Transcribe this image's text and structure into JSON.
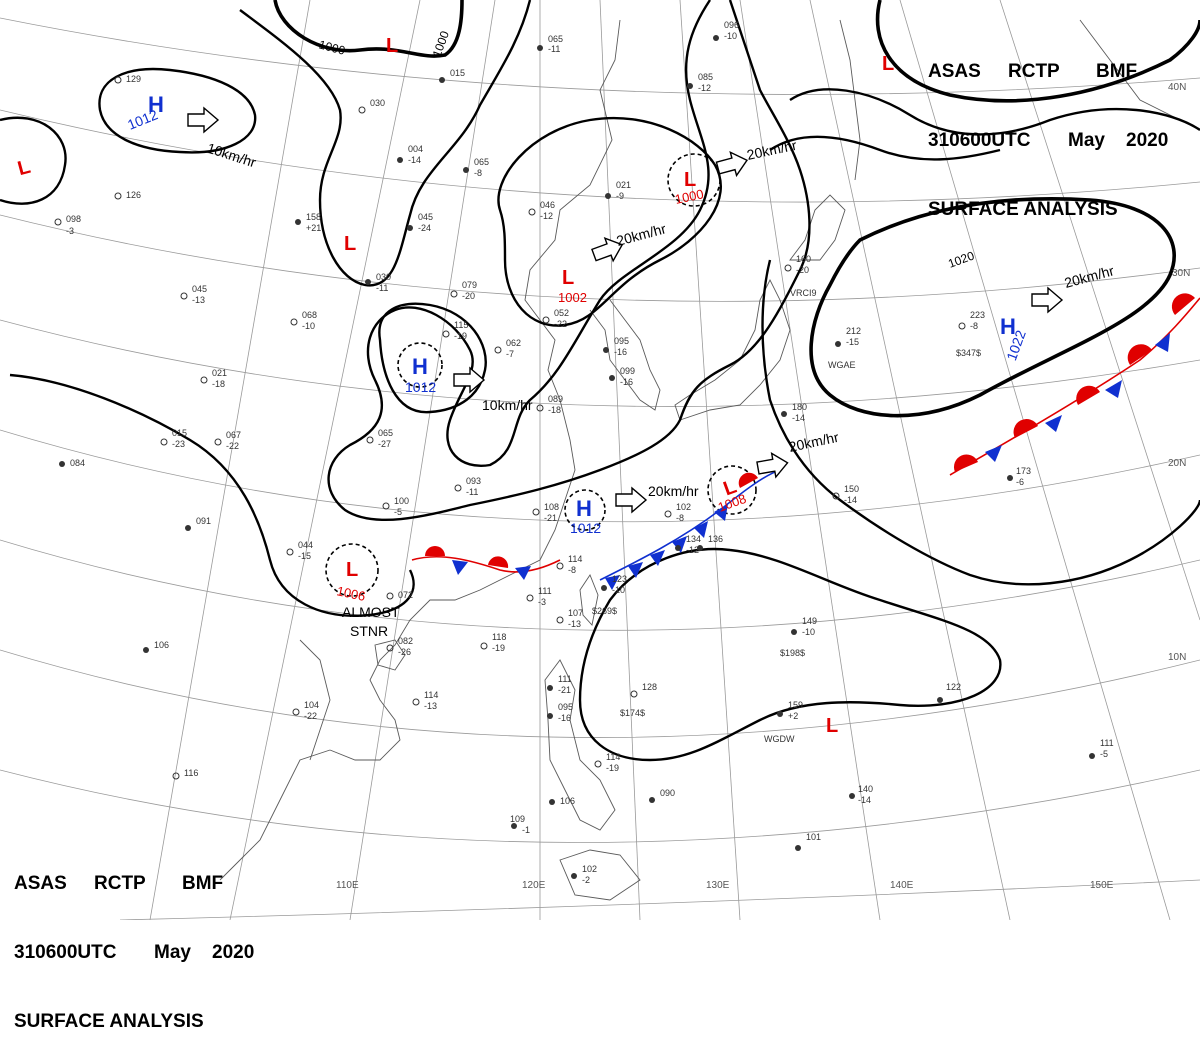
{
  "header": {
    "line1": [
      "ASAS",
      "RCTP",
      "BMF"
    ],
    "line2": [
      "310600UTC",
      "May",
      "2020"
    ],
    "line3": "SURFACE ANALYSIS"
  },
  "colors": {
    "high": "#1030d0",
    "low": "#e00000",
    "front_warm": "#e00000",
    "front_cold": "#1030d0",
    "isobar": "#000000",
    "grid": "#9a9a9a"
  },
  "isobars": [
    {
      "id": "1000-north",
      "label": "1000"
    },
    {
      "id": "1000-north-2",
      "label": "1000"
    },
    {
      "id": "1020-pacific",
      "label": "1020"
    }
  ],
  "pressure_systems": [
    {
      "id": "h-mongolia",
      "type": "H",
      "value": "1012",
      "motion": "10km/hr"
    },
    {
      "id": "h-china",
      "type": "H",
      "value": "1012",
      "motion": "10km/hr"
    },
    {
      "id": "h-ecs",
      "type": "H",
      "value": "1012",
      "motion": "20km/hr"
    },
    {
      "id": "h-pacific",
      "type": "H",
      "value": "1022",
      "motion": "20km/hr"
    },
    {
      "id": "l-manchuria",
      "type": "L",
      "value": "1000",
      "motion": "20km/hr"
    },
    {
      "id": "l-china",
      "type": "L",
      "value": "1002",
      "motion": "20km/hr"
    },
    {
      "id": "l-japan",
      "type": "L",
      "value": "1008",
      "motion": "20km/hr"
    },
    {
      "id": "l-south-china",
      "type": "L",
      "value": "1006",
      "motion": "ALMOST STNR",
      "motion_lines": [
        "ALMOST",
        "STNR"
      ]
    },
    {
      "id": "l-west",
      "type": "L",
      "value": ""
    },
    {
      "id": "l-north",
      "type": "L",
      "value": ""
    },
    {
      "id": "l-northwest",
      "type": "L",
      "value": ""
    },
    {
      "id": "l-northeast",
      "type": "L",
      "value": ""
    },
    {
      "id": "l-south",
      "type": "L",
      "value": ""
    }
  ],
  "grid_labels": {
    "lon": [
      "110E",
      "120E",
      "130E",
      "140E",
      "150E"
    ],
    "lat": [
      "40N",
      "30N",
      "20N",
      "10N"
    ]
  },
  "stations": [
    [
      "129",
      ""
    ],
    [
      "126",
      ""
    ],
    [
      "098",
      "-3"
    ],
    [
      "065",
      "-11"
    ],
    [
      "015",
      ""
    ],
    [
      "030",
      ""
    ],
    [
      "004",
      "-14"
    ],
    [
      "065",
      "-8"
    ],
    [
      "045",
      "-24"
    ],
    [
      "158",
      "+21"
    ],
    [
      "030",
      "-11"
    ],
    [
      "046",
      "-12"
    ],
    [
      "021",
      "-9"
    ],
    [
      "079",
      "-20"
    ],
    [
      "068",
      "-10"
    ],
    [
      "045",
      "-13"
    ],
    [
      "115",
      "-19"
    ],
    [
      "062",
      "-7"
    ],
    [
      "095",
      "-16"
    ],
    [
      "052",
      "-22"
    ],
    [
      "099",
      "-16"
    ],
    [
      "089",
      "-18"
    ],
    [
      "021",
      "-18"
    ],
    [
      "015",
      "-23"
    ],
    [
      "067",
      "-22"
    ],
    [
      "065",
      "-27"
    ],
    [
      "084",
      ""
    ],
    [
      "091",
      ""
    ],
    [
      "093",
      "-11"
    ],
    [
      "100",
      "-5"
    ],
    [
      "108",
      "-21"
    ],
    [
      "044",
      "-15"
    ],
    [
      "072",
      ""
    ],
    [
      "082",
      "-26"
    ],
    [
      "118",
      "-19"
    ],
    [
      "114",
      "-8"
    ],
    [
      "111",
      "-3"
    ],
    [
      "107",
      "-13"
    ],
    [
      "102",
      "-8"
    ],
    [
      "128",
      ""
    ],
    [
      "106",
      ""
    ],
    [
      "104",
      "-22"
    ],
    [
      "114",
      "-13"
    ],
    [
      "116",
      ""
    ],
    [
      "111",
      "-21"
    ],
    [
      "095",
      "-16"
    ],
    [
      "114",
      "-19"
    ],
    [
      "106",
      ""
    ],
    [
      "109",
      "-1"
    ],
    [
      "102",
      "-2"
    ],
    [
      "090",
      ""
    ],
    [
      "149",
      "-10"
    ],
    [
      "159",
      "+2"
    ],
    [
      "122",
      ""
    ],
    [
      "111",
      "-5"
    ],
    [
      "150",
      "-14"
    ],
    [
      "173",
      "-6"
    ],
    [
      "212",
      "-15"
    ],
    [
      "223",
      "-8"
    ],
    [
      "180",
      "-14"
    ],
    [
      "160",
      "-20"
    ],
    [
      "085",
      "-12"
    ],
    [
      "096",
      "-10"
    ],
    [
      "101",
      ""
    ],
    [
      "140",
      "-14"
    ],
    [
      "134",
      "-12"
    ],
    [
      "136",
      ""
    ],
    [
      "123",
      "-10"
    ]
  ],
  "station_ids": [
    "WGAE",
    "WGDW",
    "VRCI9",
    "$347$",
    "$198$",
    "$174$",
    "$269$"
  ]
}
